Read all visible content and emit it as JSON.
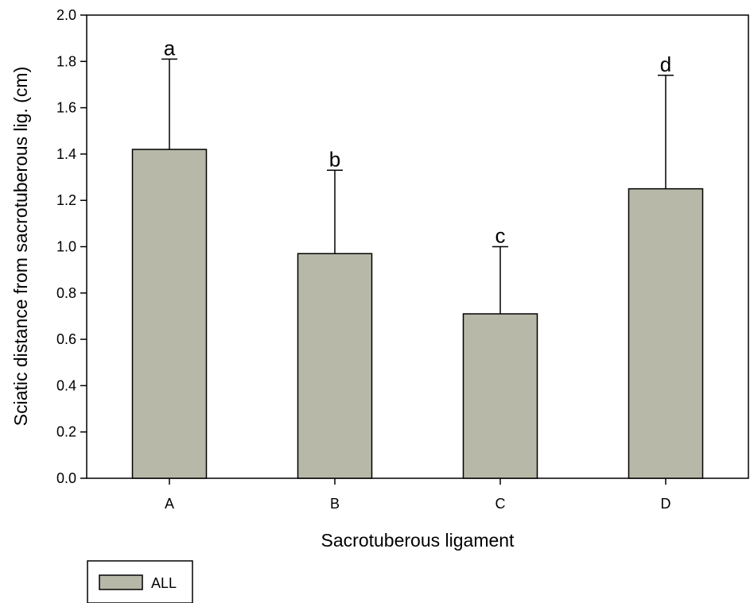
{
  "chart_data": {
    "type": "bar",
    "categories": [
      "A",
      "B",
      "C",
      "D"
    ],
    "series": [
      {
        "name": "ALL",
        "values": [
          1.42,
          0.97,
          0.71,
          1.25
        ],
        "error_upper": [
          1.81,
          1.33,
          1.0,
          1.74
        ],
        "color": "#b8b8a8"
      }
    ],
    "significance_labels": [
      "a",
      "b",
      "c",
      "d"
    ],
    "xlabel": "Sacrotuberous ligament",
    "ylabel": "Sciatic distance from sacrotuberous lig. (cm)",
    "ylim": [
      0,
      2.0
    ],
    "yticks": [
      "0.0",
      "0.2",
      "0.4",
      "0.6",
      "0.8",
      "1.0",
      "1.2",
      "1.4",
      "1.6",
      "1.8",
      "2.0"
    ],
    "grid": false,
    "legend_position": "bottom-left"
  }
}
